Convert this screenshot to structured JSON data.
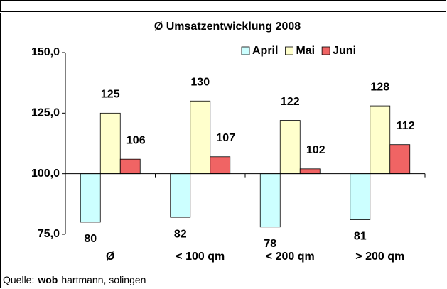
{
  "chart_data": {
    "type": "bar",
    "title": "Ø Umsatzentwicklung 2008",
    "categories": [
      "Ø",
      "< 100 qm",
      "< 200 qm",
      "> 200 qm"
    ],
    "series": [
      {
        "name": "April",
        "color": "#ccffff",
        "values": [
          80,
          82,
          78,
          81
        ]
      },
      {
        "name": "Mai",
        "color": "#ffffcc",
        "values": [
          125,
          130,
          122,
          128
        ]
      },
      {
        "name": "Juni",
        "color": "#f06464",
        "values": [
          106,
          107,
          102,
          112
        ]
      }
    ],
    "ylim": [
      75,
      150
    ],
    "yticks": [
      {
        "value": 75,
        "label": "75,0"
      },
      {
        "value": 100,
        "label": "100,0"
      },
      {
        "value": 125,
        "label": "125,0"
      },
      {
        "value": 150,
        "label": "150,0"
      }
    ],
    "xaxis_crosses": 100,
    "grid": false,
    "legend": "top-right",
    "source_label": "Quelle:",
    "source_brand": "wob",
    "source_text": "hartmann, solingen"
  }
}
